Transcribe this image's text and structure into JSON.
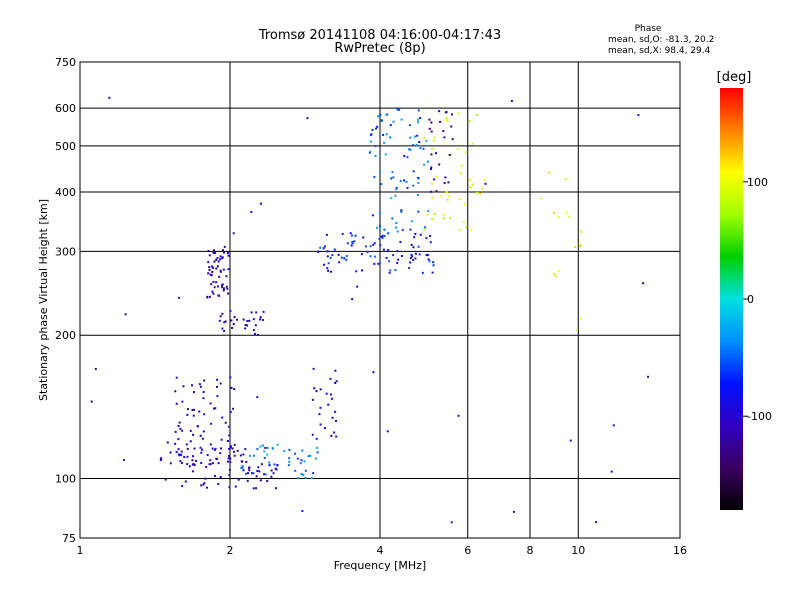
{
  "chart_data": {
    "type": "scatter",
    "title": "Tromsø 20141108 04:16:00-04:17:43",
    "subtitle": "RwPretec (8p)",
    "xlabel": "Frequency [MHz]",
    "ylabel": "Stationary phase Virtual Height [km]",
    "x_scale": "log",
    "y_scale": "log",
    "xlim": [
      1,
      16
    ],
    "ylim": [
      75,
      750
    ],
    "x_ticks": [
      1,
      2,
      4,
      6,
      8,
      10,
      16
    ],
    "y_ticks": [
      75,
      100,
      200,
      300,
      400,
      500,
      600,
      750
    ],
    "grid": true,
    "phase_box": {
      "title": "Phase",
      "line1": "mean, sd,O: -81.3, 20.2",
      "line2": "mean, sd,X:  98.4, 29.4"
    },
    "colorbar": {
      "label": "[deg]",
      "range": [
        -180,
        180
      ],
      "ticks": [
        100,
        0,
        -100
      ]
    },
    "clusters": [
      {
        "x": [
          1.45,
          2.15
        ],
        "y": [
          106,
          120
        ],
        "phase": -100,
        "n": 60
      },
      {
        "x": [
          1.6,
          2.5
        ],
        "y": [
          95,
          110
        ],
        "phase": -110,
        "n": 50
      },
      {
        "x": [
          1.55,
          2.05
        ],
        "y": [
          120,
          165
        ],
        "phase": -105,
        "n": 50
      },
      {
        "x": [
          2.1,
          3.0
        ],
        "y": [
          100,
          118
        ],
        "phase": -40,
        "n": 45
      },
      {
        "x": [
          2.9,
          3.3
        ],
        "y": [
          120,
          175
        ],
        "phase": -95,
        "n": 25
      },
      {
        "x": [
          1.8,
          2.0
        ],
        "y": [
          240,
          310
        ],
        "phase": -110,
        "n": 55
      },
      {
        "x": [
          1.9,
          2.35
        ],
        "y": [
          200,
          225
        ],
        "phase": -110,
        "n": 30
      },
      {
        "x": [
          3.0,
          5.2
        ],
        "y": [
          270,
          330
        ],
        "phase": -70,
        "n": 90
      },
      {
        "x": [
          3.8,
          5.0
        ],
        "y": [
          330,
          600
        ],
        "phase": -45,
        "n": 80
      },
      {
        "x": [
          4.9,
          6.5
        ],
        "y": [
          330,
          600
        ],
        "phase": 95,
        "n": 45
      },
      {
        "x": [
          5.0,
          5.6
        ],
        "y": [
          400,
          600
        ],
        "phase": -120,
        "n": 25
      },
      {
        "x": [
          8.2,
          10.2
        ],
        "y": [
          200,
          450
        ],
        "phase": 105,
        "n": 16
      },
      {
        "x": [
          1.0,
          16.0
        ],
        "y": [
          78,
          650
        ],
        "phase": -90,
        "n": 35
      }
    ]
  }
}
